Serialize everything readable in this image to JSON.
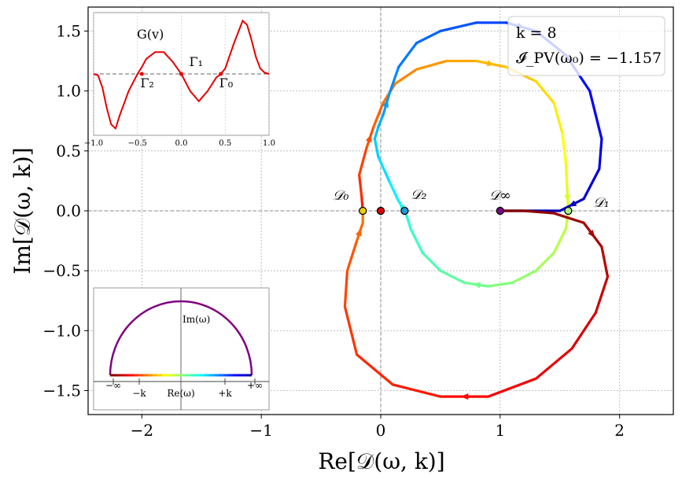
{
  "chart_data": {
    "type": "line",
    "title": "",
    "xlabel": "Re[𝒟(ω, k)]",
    "ylabel": "Im[𝒟(ω, k)]",
    "xlim": [
      -2.45,
      2.45
    ],
    "ylim": [
      -1.7,
      1.7
    ],
    "xticks": [
      -2,
      -1,
      0,
      1,
      2
    ],
    "yticks": [
      -1.5,
      -1.0,
      -0.5,
      0.0,
      0.5,
      1.0,
      1.5
    ],
    "xtick_labels": [
      "−2",
      "−1",
      "0",
      "1",
      "2"
    ],
    "ytick_labels": [
      "−1.5",
      "−1.0",
      "−0.5",
      "0.0",
      "0.5",
      "1.0",
      "1.5"
    ],
    "grid": true,
    "legend_placement": "top-right",
    "legend": {
      "line1": "k = 8",
      "line2": "𝓘_PV(ω₀) = −1.157"
    },
    "series": [
      {
        "values_note": "",
        "points": [
          [
            -0.15,
            0.0
          ],
          [
            -0.16,
            0.12
          ],
          [
            -0.18,
            0.3
          ],
          [
            -0.12,
            0.52
          ],
          [
            -0.06,
            0.7
          ],
          [
            0.02,
            0.9
          ],
          [
            0.12,
            1.06
          ],
          [
            0.3,
            1.18
          ],
          [
            0.55,
            1.25
          ],
          [
            0.8,
            1.25
          ],
          [
            1.05,
            1.2
          ],
          [
            1.3,
            1.08
          ],
          [
            1.45,
            0.9
          ],
          [
            1.52,
            0.65
          ],
          [
            1.55,
            0.4
          ],
          [
            1.56,
            0.2
          ],
          [
            1.57,
            0.0
          ],
          [
            1.55,
            -0.15
          ],
          [
            1.45,
            -0.35
          ],
          [
            1.3,
            -0.5
          ],
          [
            1.1,
            -0.6
          ],
          [
            0.9,
            -0.63
          ],
          [
            0.7,
            -0.6
          ],
          [
            0.5,
            -0.5
          ],
          [
            0.35,
            -0.35
          ],
          [
            0.25,
            -0.15
          ],
          [
            0.22,
            -0.05
          ],
          [
            0.2,
            0.0
          ],
          [
            0.15,
            0.08
          ],
          [
            0.07,
            0.25
          ],
          [
            -0.02,
            0.45
          ],
          [
            -0.05,
            0.6
          ],
          [
            -0.02,
            0.7
          ],
          [
            0.02,
            0.8
          ],
          [
            0.08,
            1.0
          ],
          [
            0.15,
            1.2
          ],
          [
            0.3,
            1.4
          ],
          [
            0.5,
            1.5
          ],
          [
            0.8,
            1.57
          ],
          [
            1.05,
            1.57
          ],
          [
            1.3,
            1.5
          ],
          [
            1.55,
            1.3
          ],
          [
            1.75,
            1.0
          ],
          [
            1.85,
            0.6
          ],
          [
            1.83,
            0.35
          ],
          [
            1.7,
            0.1
          ],
          [
            1.5,
            0.0
          ],
          [
            1.3,
            0.0
          ],
          [
            1.1,
            0.0
          ],
          [
            1.0,
            0.0
          ]
        ],
        "colormap": "jet-reversed"
      },
      {
        "points": [
          [
            1.0,
            0.0
          ],
          [
            1.2,
            0.0
          ],
          [
            1.45,
            -0.02
          ],
          [
            1.7,
            -0.1
          ],
          [
            1.85,
            -0.3
          ],
          [
            1.9,
            -0.55
          ],
          [
            1.8,
            -0.85
          ],
          [
            1.6,
            -1.15
          ],
          [
            1.3,
            -1.4
          ],
          [
            0.9,
            -1.55
          ],
          [
            0.5,
            -1.55
          ],
          [
            0.1,
            -1.45
          ],
          [
            -0.2,
            -1.2
          ],
          [
            -0.3,
            -0.8
          ],
          [
            -0.28,
            -0.5
          ],
          [
            -0.2,
            -0.25
          ],
          [
            -0.15,
            -0.1
          ],
          [
            -0.15,
            0.0
          ]
        ],
        "colormap": "red-orange"
      }
    ],
    "markers": [
      {
        "label": "𝒟₀",
        "x": -0.15,
        "y": 0.0,
        "face": "#f2d000"
      },
      {
        "label": "",
        "x": 0.0,
        "y": 0.0,
        "face": "#e00000"
      },
      {
        "label": "𝒟₂",
        "x": 0.2,
        "y": 0.0,
        "face": "#1f9bd6"
      },
      {
        "label": "𝒟∞",
        "x": 1.0,
        "y": 0.0,
        "face": "#7a0a8a"
      },
      {
        "label": "𝒟₁",
        "x": 1.57,
        "y": 0.0,
        "face": "#aef08a"
      }
    ],
    "inset_top": {
      "title": "G(v)",
      "xticks": [
        -1.0,
        -0.5,
        0.0,
        0.5,
        1.0
      ],
      "xtick_labels": [
        "−1.0",
        "−0.5",
        "0.0",
        "0.5",
        "1.0"
      ],
      "xlim": [
        -1.0,
        1.0
      ],
      "ylim": [
        -0.9,
        0.9
      ],
      "curve": [
        [
          -1.0,
          0.0
        ],
        [
          -0.95,
          -0.02
        ],
        [
          -0.9,
          -0.2
        ],
        [
          -0.85,
          -0.5
        ],
        [
          -0.8,
          -0.74
        ],
        [
          -0.75,
          -0.8
        ],
        [
          -0.7,
          -0.6
        ],
        [
          -0.6,
          -0.25
        ],
        [
          -0.5,
          0.0
        ],
        [
          -0.45,
          0.1
        ],
        [
          -0.4,
          0.22
        ],
        [
          -0.3,
          0.32
        ],
        [
          -0.2,
          0.32
        ],
        [
          -0.1,
          0.18
        ],
        [
          0.0,
          0.0
        ],
        [
          0.1,
          -0.25
        ],
        [
          0.2,
          -0.4
        ],
        [
          0.3,
          -0.25
        ],
        [
          0.4,
          -0.05
        ],
        [
          0.45,
          0.0
        ],
        [
          0.5,
          0.08
        ],
        [
          0.6,
          0.45
        ],
        [
          0.7,
          0.78
        ],
        [
          0.75,
          0.72
        ],
        [
          0.8,
          0.5
        ],
        [
          0.85,
          0.25
        ],
        [
          0.9,
          0.08
        ],
        [
          0.95,
          0.02
        ],
        [
          1.0,
          0.0
        ]
      ],
      "points": [
        {
          "label": "Γ₂",
          "x": -0.45
        },
        {
          "label": "Γ₁",
          "x": 0.0
        },
        {
          "label": "Γ₀",
          "x": 0.45
        }
      ]
    },
    "inset_bottom": {
      "vertical_label": "Im(ω)",
      "horizontal_label": "Re(ω)",
      "tick_labels": [
        "−∞",
        "−k",
        "+k",
        "+∞"
      ]
    }
  }
}
